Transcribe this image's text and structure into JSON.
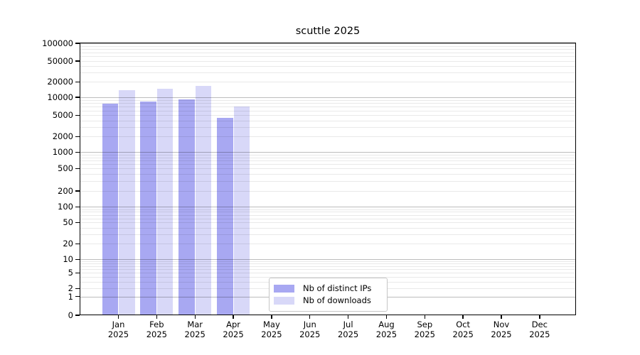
{
  "chart_data": {
    "type": "bar",
    "title": "scuttle 2025",
    "categories": [
      "Jan 2025",
      "Feb 2025",
      "Mar 2025",
      "Apr 2025",
      "May 2025",
      "Jun 2025",
      "Jul 2025",
      "Aug 2025",
      "Sep 2025",
      "Oct 2025",
      "Nov 2025",
      "Dec 2025"
    ],
    "series": [
      {
        "name": "Nb of distinct IPs",
        "color": "#a8a8f2",
        "values": [
          7800,
          8600,
          9200,
          4500,
          null,
          null,
          null,
          null,
          null,
          null,
          null,
          null
        ]
      },
      {
        "name": "Nb of downloads",
        "color": "#d8d8f8",
        "values": [
          13800,
          14800,
          16500,
          7000,
          null,
          null,
          null,
          null,
          null,
          null,
          null,
          null
        ]
      }
    ],
    "yticks": [
      0,
      1,
      2,
      5,
      10,
      20,
      50,
      100,
      200,
      500,
      1000,
      2000,
      5000,
      10000,
      20000,
      50000,
      100000
    ],
    "ylim": [
      0,
      100000
    ],
    "xlabel": "",
    "ylabel": "",
    "grid": {
      "enabled": true,
      "drawn_over_bars": true,
      "minor_subs": [
        2,
        3,
        4,
        5,
        6,
        7,
        8,
        9
      ],
      "major_decades": [
        1,
        10,
        100,
        1000,
        10000,
        100000
      ]
    },
    "y_scale": {
      "type": "symlog-calibrated",
      "anchors": {
        "0": 444,
        "1": 417.7,
        "2": 406.3,
        "5": 384.3,
        "10": 365.3,
        "20": 343.3,
        "50": 313.3,
        "100": 291.3,
        "200": 269,
        "500": 237.3,
        "1000": 214.3,
        "2000": 192.3,
        "5000": 162.3,
        "10000": 137,
        "20000": 115.3,
        "50000": 86,
        "100000": 61
      }
    },
    "legend": {
      "position": "lower center"
    },
    "colors": {
      "decade_grid": "#c2c2c2",
      "minor_grid": "#ebebeb",
      "axis": "#000000"
    }
  }
}
